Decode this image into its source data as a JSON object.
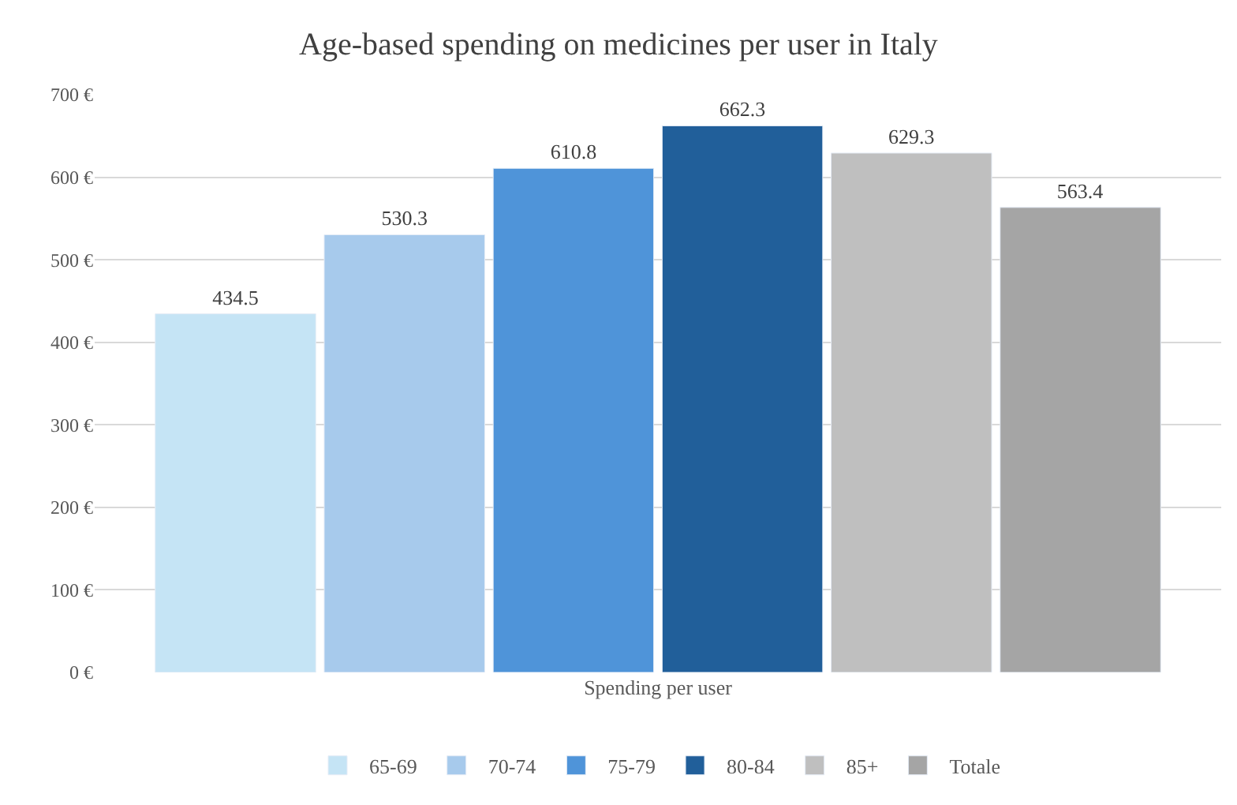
{
  "chart_data": {
    "type": "bar",
    "title": "Age-based spending on medicines per user in Italy",
    "categories": [
      "Spending per user"
    ],
    "series": [
      {
        "name": "65-69",
        "color": "#c5e4f5",
        "values": [
          434.5
        ]
      },
      {
        "name": "70-74",
        "color": "#a7caec",
        "values": [
          530.3
        ]
      },
      {
        "name": "75-79",
        "color": "#4f94d9",
        "values": [
          610.8
        ]
      },
      {
        "name": "80-84",
        "color": "#215f9a",
        "values": [
          662.3
        ]
      },
      {
        "name": "85+",
        "color": "#bfbfbf",
        "values": [
          629.3
        ]
      },
      {
        "name": "Totale",
        "color": "#a5a5a5",
        "values": [
          563.4
        ]
      }
    ],
    "ylim": [
      0,
      700
    ],
    "yticks": [
      {
        "value": 0,
        "label": "0 €"
      },
      {
        "value": 100,
        "label": "100 €"
      },
      {
        "value": 200,
        "label": "200 €"
      },
      {
        "value": 300,
        "label": "300 €"
      },
      {
        "value": 400,
        "label": "400 €"
      },
      {
        "value": 500,
        "label": "500 €"
      },
      {
        "value": 600,
        "label": "600 €"
      },
      {
        "value": 700,
        "label": "700 €"
      }
    ],
    "grid": "y",
    "legend": "bottom",
    "data_labels": true
  }
}
